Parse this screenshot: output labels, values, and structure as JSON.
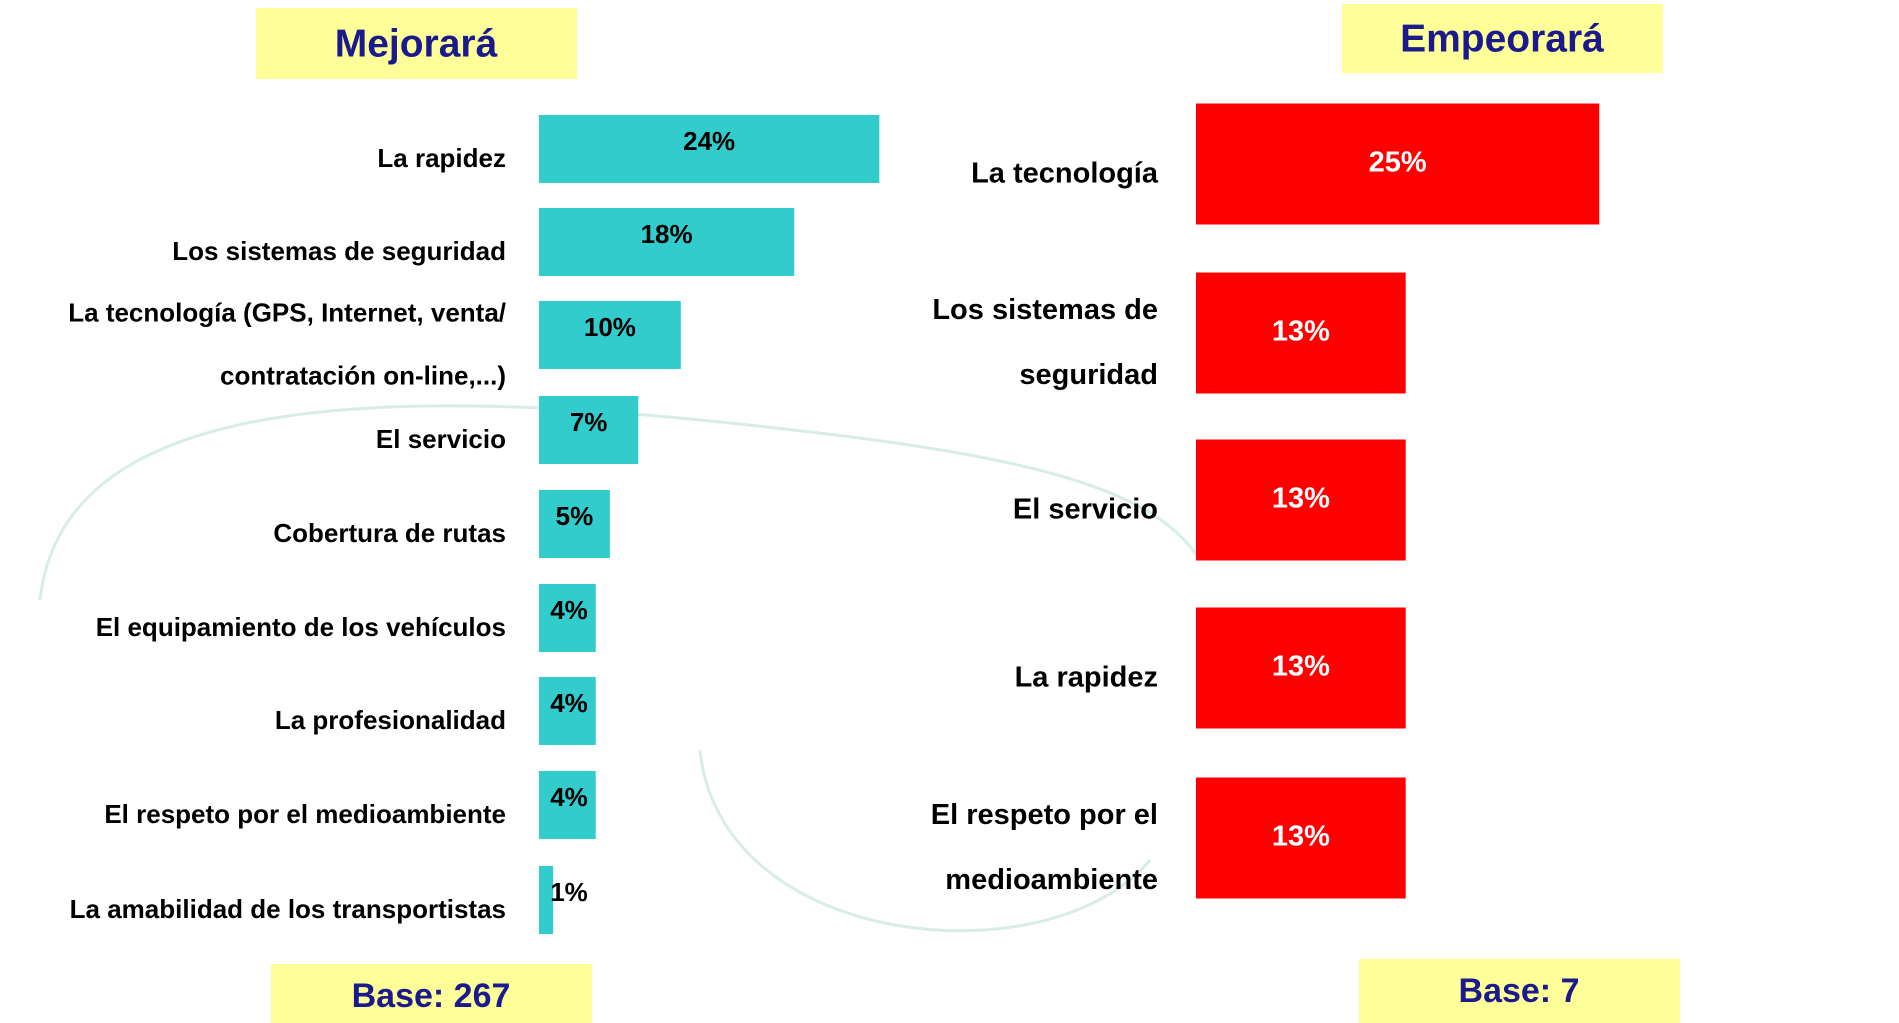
{
  "chart_data": [
    {
      "type": "bar",
      "orientation": "horizontal",
      "title": "Mejorará",
      "base_label": "Base: 267",
      "color": "#33cccc",
      "value_label_color": "#000000",
      "categories": [
        [
          "La rapidez"
        ],
        [
          "Los sistemas de seguridad"
        ],
        [
          "La tecnología (GPS, Internet, venta/",
          "contratación on-line,...)"
        ],
        [
          "El servicio"
        ],
        [
          "Cobertura de rutas"
        ],
        [
          "El equipamiento de los vehículos"
        ],
        [
          "La profesionalidad"
        ],
        [
          "El respeto por el medioambiente"
        ],
        [
          "La amabilidad de los transportistas"
        ]
      ],
      "values": [
        24,
        18,
        10,
        7,
        5,
        4,
        4,
        4,
        1
      ],
      "value_labels": [
        "24%",
        "18%",
        "10%",
        "7%",
        "5%",
        "4%",
        "4%",
        "4%",
        "1%"
      ]
    },
    {
      "type": "bar",
      "orientation": "horizontal",
      "title": "Empeorará",
      "base_label": "Base: 7",
      "color": "#ff0000",
      "value_label_color": "#ffffff",
      "categories": [
        [
          "La tecnología"
        ],
        [
          "Los sistemas de",
          "seguridad"
        ],
        [
          "El servicio"
        ],
        [
          "La rapidez"
        ],
        [
          "El respeto por el",
          "medioambiente"
        ]
      ],
      "values": [
        25,
        13,
        13,
        13,
        13
      ],
      "value_labels": [
        "25%",
        "13%",
        "13%",
        "13%",
        "13%"
      ]
    }
  ]
}
